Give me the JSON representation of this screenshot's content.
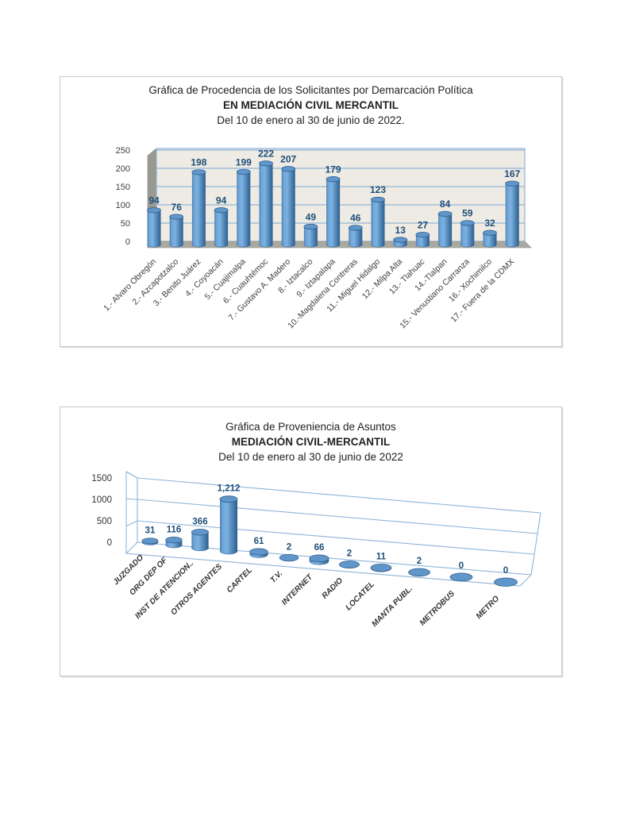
{
  "page": {
    "background": "#ffffff"
  },
  "chart_data": [
    {
      "type": "bar",
      "subtype": "3d-cylinder",
      "title_lines": [
        "Gráfica de Procedencia de los Solicitantes por Demarcación Política",
        "EN MEDIACIÓN CIVIL MERCANTIL",
        "Del 10 de enero al 30 de junio de 2022."
      ],
      "categories": [
        "1.- Alvaro Obregón",
        "2.- Azcapotzalco",
        "3.- Benito Juárez",
        "4.- Coyoacán",
        "5.- Cuajimalpa",
        "6.- Cuauhtémoc",
        "7.- Gustavo A. Madero",
        "8.- Iztacalco",
        "9.- Iztapalapa",
        "10.-Magdalena Contreras",
        "11.- Miguel Hidalgo",
        "12.- Milpa Alta",
        "13.- Tlahuac",
        "14.-Tlalpan",
        "15.- Venustiano Carranza",
        "16.- Xochimilco",
        "17.- Fuera de la CDMX"
      ],
      "values": [
        94,
        76,
        198,
        94,
        199,
        222,
        207,
        49,
        179,
        46,
        123,
        13,
        27,
        84,
        59,
        32,
        167
      ],
      "value_labels": [
        "94",
        "76",
        "198",
        "94",
        "199",
        "222",
        "207",
        "49",
        "179",
        "46",
        "123",
        "13",
        "27",
        "84",
        "59",
        "32",
        "167"
      ],
      "yticks": [
        0,
        50,
        100,
        150,
        200,
        250
      ],
      "ylim": [
        0,
        250
      ],
      "xlabel": "",
      "ylabel": "",
      "grid": "horizontal",
      "legend": "none",
      "colors": {
        "bar": "#5b91c9",
        "bar_dark": "#2f5d8a",
        "bar_top": "#6196ca",
        "rim": "#31618f",
        "label": "#1f4e79",
        "axis_text": "#3f3f3f",
        "grid": "#7da7d4",
        "wall": "#edebe3",
        "floor": "#a9a9a1",
        "side": "#999991",
        "side_edge": "#8a8a82"
      }
    },
    {
      "type": "bar",
      "subtype": "3d-cylinder-perspective",
      "title_lines": [
        "Gráfica de Proveniencia de Asuntos",
        "MEDIACIÓN CIVIL-MERCANTIL",
        "Del  10 de enero al  30 de junio  de  2022"
      ],
      "categories": [
        "JUZGADO",
        "ORG DEP OF",
        "INST DE ATENCION..",
        "OTROS AGENTES",
        "CARTEL",
        "T.V.",
        "INTERNET",
        "RADIO",
        "LOCATEL",
        "MANTA PUBL.",
        "METROBUS",
        "METRO"
      ],
      "values": [
        31,
        116,
        366,
        1212,
        61,
        2,
        66,
        2,
        11,
        2,
        0,
        0
      ],
      "value_labels": [
        "31",
        "116",
        "366",
        "1,212",
        "61",
        "2",
        "66",
        "2",
        "11",
        "2",
        "0",
        "0"
      ],
      "yticks": [
        0,
        500,
        1000,
        1500
      ],
      "ylim": [
        0,
        1500
      ],
      "xlabel": "",
      "ylabel": "",
      "grid": "horizontal",
      "legend": "none",
      "colors": {
        "bar": "#5b91c9",
        "bar_dark": "#2f5d8a",
        "bar_top": "#6196ca",
        "rim": "#31618f",
        "label": "#1f4e79",
        "axis_text": "#333333",
        "grid": "#8db4d9"
      }
    }
  ]
}
